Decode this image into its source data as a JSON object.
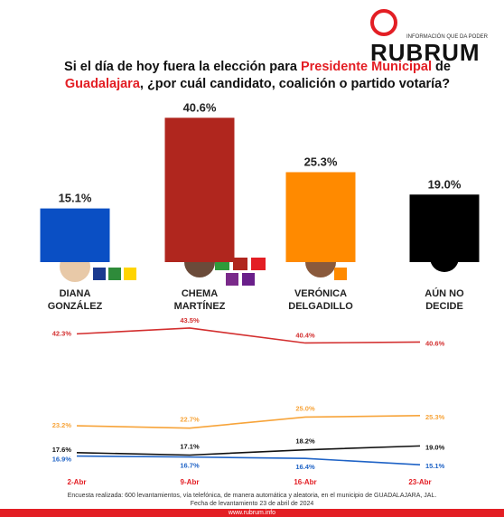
{
  "header": {
    "logo": "RUBRUM",
    "tagline": "INFORMACIÓN QUE DA PODER",
    "title": [
      "Si el día de hoy fuera la elección para ",
      "Presidente Municipal",
      " de ",
      "Guadalajara",
      ", ¿por cuál candidato, coalición o partido votaría?"
    ]
  },
  "chart_data": [
    {
      "type": "bar",
      "categories": [
        "DIANA\nGONZÁLEZ",
        "CHEMA\nMARTÍNEZ",
        "VERÓNICA\nDELGADILLO",
        "AÚN NO\nDECIDE"
      ],
      "values": [
        15.1,
        40.6,
        25.3,
        19.0
      ],
      "value_labels": [
        "15.1%",
        "40.6%",
        "25.3%",
        "19.0%"
      ],
      "colors": [
        "#0a4fc4",
        "#b0261e",
        "#ff8a00",
        "#000000"
      ],
      "ylim": [
        0,
        45
      ]
    },
    {
      "type": "line",
      "x": [
        "2-Abr",
        "9-Abr",
        "16-Abr",
        "23-Abr"
      ],
      "ylim": [
        14,
        45
      ],
      "series": [
        {
          "color": "#d32f2f",
          "values": [
            42.3,
            43.5,
            40.4,
            40.6
          ],
          "value_labels": [
            "42.3%",
            "43.5%",
            "40.4%",
            "40.6%"
          ]
        },
        {
          "color": "#f7a43a",
          "values": [
            23.2,
            22.7,
            25.0,
            25.3
          ],
          "value_labels": [
            "23.2%",
            "22.7%",
            "25.0%",
            "25.3%"
          ]
        },
        {
          "color": "#111111",
          "values": [
            17.6,
            17.1,
            18.2,
            19.0
          ],
          "value_labels": [
            "17.6%",
            "17.1%",
            "18.2%",
            "19.0%"
          ]
        },
        {
          "color": "#1f63c6",
          "values": [
            16.9,
            16.7,
            16.4,
            15.1
          ],
          "value_labels": [
            "16.9%",
            "16.7%",
            "16.4%",
            "15.1%"
          ]
        }
      ]
    }
  ],
  "footer": {
    "note": "Encuesta realizada: 600 levantamientos, vía telefónica, de manera automática y aleatoria, en el municipio de GUADALAJARA, JAL.",
    "date": "Fecha de levantamiento 23 de abril de 2024",
    "url": "www.rubrum.info"
  }
}
